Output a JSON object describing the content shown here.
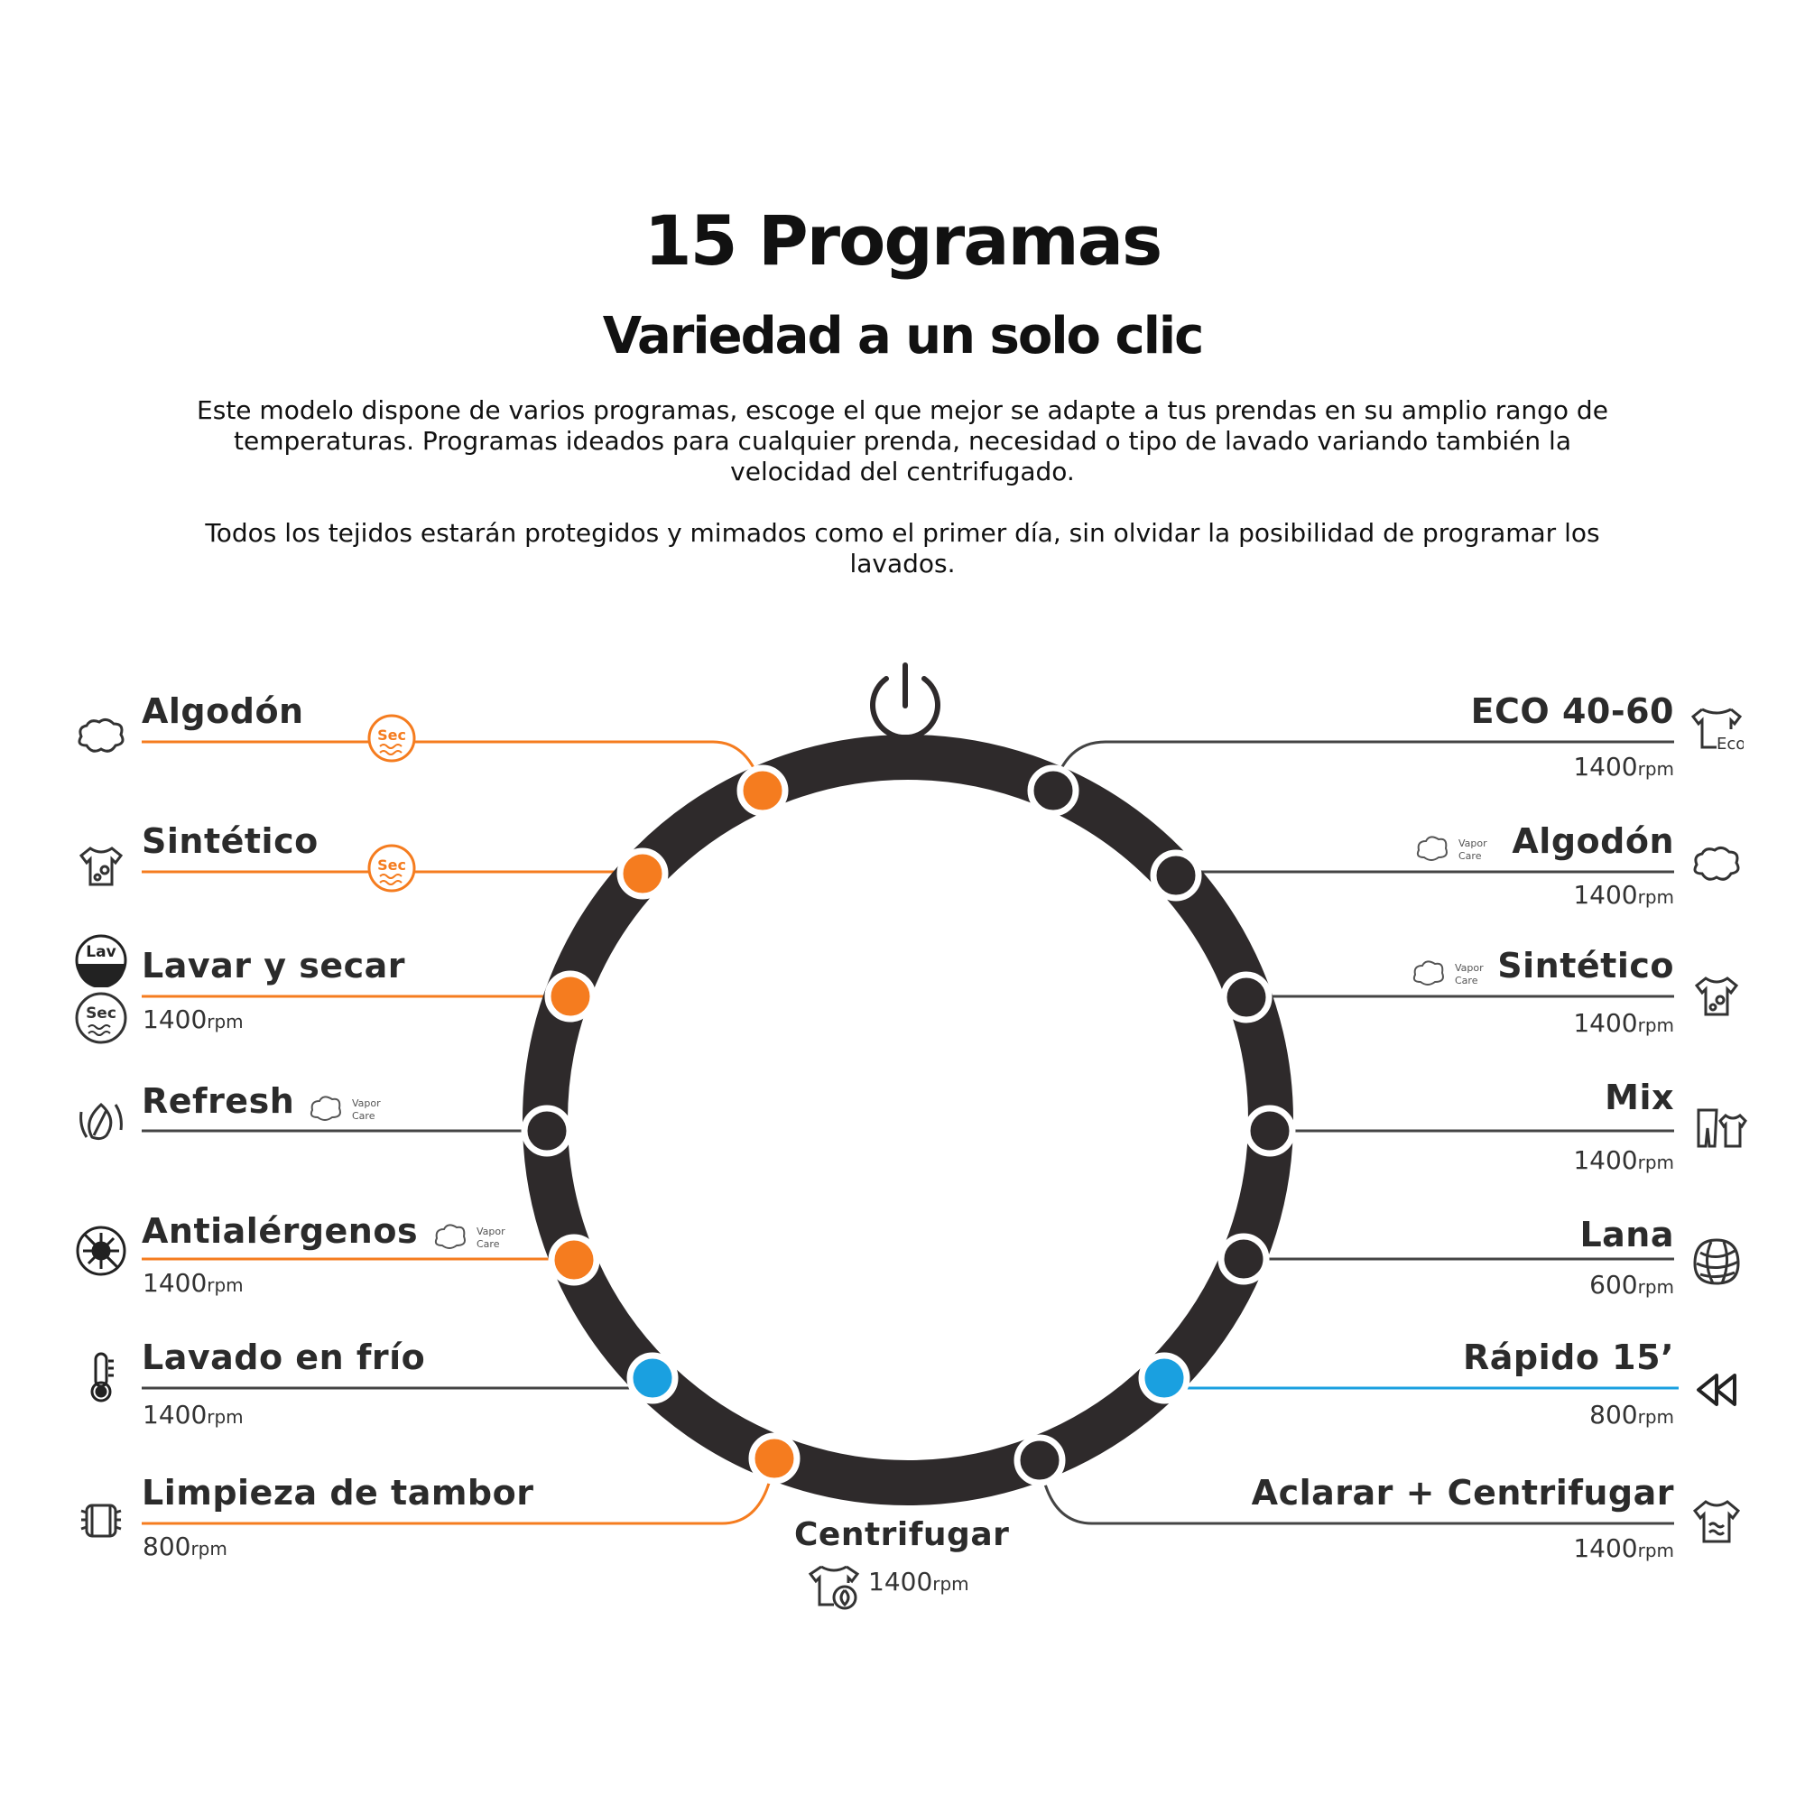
{
  "header": {
    "title": "15 Programas",
    "subtitle": "Variedad a un solo clic",
    "paragraph1": "Este modelo dispone de varios programas, escoge el que mejor se adapte a tus prendas en su amplio rango de temperaturas. Programas ideados para cualquier prenda, necesidad o tipo de lavado variando también la velocidad del centrifugado.",
    "paragraph2": "Todos los tejidos estarán protegidos y mimados como el primer día, sin olvidar la posibilidad de programar los lavados."
  },
  "colors": {
    "dial_ring": "#2e2a2b",
    "orange": "#f57c1f",
    "blue": "#1aa0e0",
    "dark_knob": "#2e2a2b",
    "line_dark": "#444444"
  },
  "icon_text": {
    "sec": "Sec",
    "lav": "Lav",
    "eco": "Eco",
    "vapor_line1": "Vapor",
    "vapor_line2": "Care"
  },
  "unit": "rpm",
  "programs_left": [
    {
      "name": "Algodón",
      "speed": "",
      "icon": "cotton-icon",
      "extra": "sec-badge"
    },
    {
      "name": "Sintético",
      "speed": "",
      "icon": "synthetic-shirt-icon",
      "extra": "sec-badge"
    },
    {
      "name": "Lavar y secar",
      "speed": "1400",
      "icon": "wash-dry-icon",
      "extra": ""
    },
    {
      "name": "Refresh",
      "speed": "",
      "icon": "refresh-leaf-icon",
      "extra": "vapor-care"
    },
    {
      "name": "Antialérgenos",
      "speed": "1400",
      "icon": "anti-allergen-icon",
      "extra": "vapor-care"
    },
    {
      "name": "Lavado en frío",
      "speed": "1400",
      "icon": "thermometer-icon",
      "extra": ""
    },
    {
      "name": "Limpieza de tambor",
      "speed": "800",
      "icon": "drum-clean-icon",
      "extra": ""
    }
  ],
  "programs_right": [
    {
      "name": "ECO 40-60",
      "speed": "1400",
      "icon": "eco-shirt-icon",
      "extra": ""
    },
    {
      "name": "Algodón",
      "speed": "1400",
      "icon": "cotton-icon",
      "extra": "vapor-care"
    },
    {
      "name": "Sintético",
      "speed": "1400",
      "icon": "synthetic-shirt-icon",
      "extra": "vapor-care"
    },
    {
      "name": "Mix",
      "speed": "1400",
      "icon": "mix-clothes-icon",
      "extra": ""
    },
    {
      "name": "Lana",
      "speed": "600",
      "icon": "wool-icon",
      "extra": ""
    },
    {
      "name": "Rápido 15’",
      "speed": "800",
      "icon": "rewind-icon",
      "extra": ""
    },
    {
      "name": "Aclarar + Centrifugar",
      "speed": "1400",
      "icon": "rinse-spin-icon",
      "extra": ""
    }
  ],
  "program_bottom": {
    "name": "Centrifugar",
    "speed": "1400",
    "icon": "spin-shirt-icon"
  }
}
